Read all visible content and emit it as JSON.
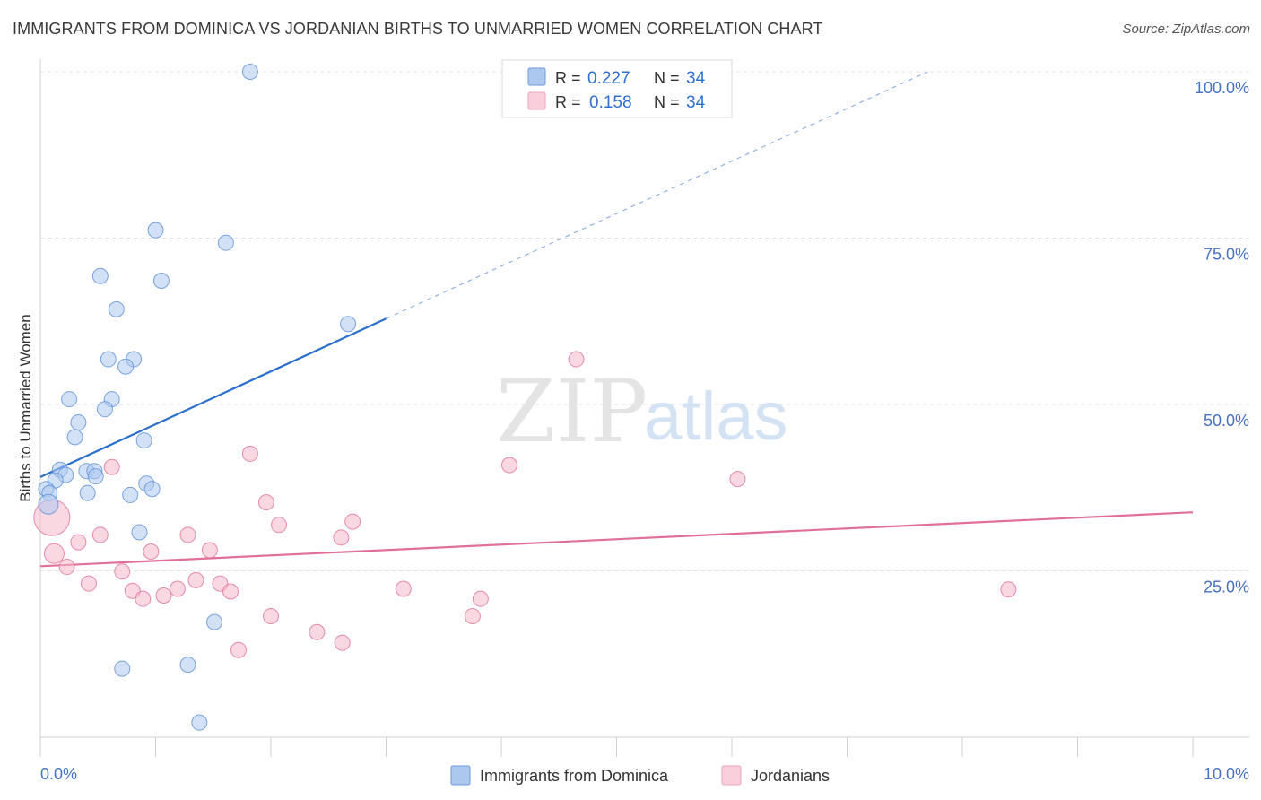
{
  "title": "IMMIGRANTS FROM DOMINICA VS JORDANIAN BIRTHS TO UNMARRIED WOMEN CORRELATION CHART",
  "source": "Source: ZipAtlas.com",
  "watermark": {
    "part1": "ZIP",
    "part2": "atlas"
  },
  "legend_top": {
    "rows": [
      {
        "r_label": "R =",
        "r_value": "0.227",
        "n_label": "N =",
        "n_value": "34",
        "color": "#adc8ef"
      },
      {
        "r_label": "R =",
        "r_value": "0.158",
        "n_label": "N =",
        "n_value": "34",
        "color": "#f5b8ca"
      }
    ]
  },
  "chart_data": {
    "type": "scatter",
    "title": "IMMIGRANTS FROM DOMINICA VS JORDANIAN BIRTHS TO UNMARRIED WOMEN CORRELATION CHART",
    "xlabel": "",
    "ylabel": "Births to Unmarried Women",
    "xlim": [
      0,
      10
    ],
    "ylim": [
      0,
      100
    ],
    "x_tick_labels": [
      "0.0%",
      "10.0%"
    ],
    "y_ticks": [
      25,
      50,
      75,
      100
    ],
    "y_tick_labels": [
      "25.0%",
      "50.0%",
      "75.0%",
      "100.0%"
    ],
    "grid": true,
    "legend_position": "bottom",
    "series": [
      {
        "name": "Immigrants from Dominica",
        "color": "#5b8fd8",
        "fill": "#adc8ef",
        "points": [
          [
            1.82,
            100.0
          ],
          [
            1.0,
            76.2
          ],
          [
            1.61,
            74.3
          ],
          [
            0.52,
            69.3
          ],
          [
            1.05,
            68.6
          ],
          [
            0.66,
            64.3
          ],
          [
            2.67,
            62.1
          ],
          [
            0.59,
            56.8
          ],
          [
            0.81,
            56.8
          ],
          [
            0.74,
            55.7
          ],
          [
            0.25,
            50.8
          ],
          [
            0.62,
            50.8
          ],
          [
            0.56,
            49.3
          ],
          [
            0.33,
            47.3
          ],
          [
            0.3,
            45.1
          ],
          [
            0.9,
            44.6
          ],
          [
            0.17,
            40.2
          ],
          [
            0.4,
            40.0
          ],
          [
            0.47,
            40.0
          ],
          [
            0.22,
            39.4
          ],
          [
            0.48,
            39.2
          ],
          [
            0.13,
            38.6
          ],
          [
            0.92,
            38.1
          ],
          [
            0.05,
            37.3
          ],
          [
            0.97,
            37.3
          ],
          [
            0.08,
            36.7
          ],
          [
            0.41,
            36.7
          ],
          [
            0.78,
            36.4
          ],
          [
            0.07,
            35.0
          ],
          [
            0.86,
            30.8
          ],
          [
            1.51,
            17.3
          ],
          [
            0.71,
            10.3
          ],
          [
            1.28,
            10.9
          ],
          [
            1.38,
            2.2
          ]
        ],
        "trend": {
          "x0": 0.0,
          "y0": 39.1,
          "x1": 3.0,
          "y1": 62.9,
          "ext_x1": 7.7,
          "ext_y1": 100.0
        }
      },
      {
        "name": "Jordanians",
        "color": "#e0709a",
        "fill": "#f5b8ca",
        "points": [
          [
            4.65,
            56.8
          ],
          [
            1.82,
            42.6
          ],
          [
            4.07,
            40.9
          ],
          [
            6.05,
            38.8
          ],
          [
            0.62,
            40.6
          ],
          [
            1.96,
            35.3
          ],
          [
            2.71,
            32.4
          ],
          [
            2.07,
            31.9
          ],
          [
            0.52,
            30.4
          ],
          [
            1.28,
            30.4
          ],
          [
            2.61,
            30.0
          ],
          [
            0.33,
            29.3
          ],
          [
            1.47,
            28.1
          ],
          [
            0.96,
            27.9
          ],
          [
            0.12,
            27.6
          ],
          [
            0.1,
            33.0
          ],
          [
            0.23,
            25.6
          ],
          [
            0.71,
            24.9
          ],
          [
            0.42,
            23.1
          ],
          [
            1.35,
            23.6
          ],
          [
            1.56,
            23.1
          ],
          [
            1.19,
            22.3
          ],
          [
            3.15,
            22.3
          ],
          [
            8.4,
            22.2
          ],
          [
            0.8,
            22.0
          ],
          [
            1.65,
            21.9
          ],
          [
            1.07,
            21.3
          ],
          [
            0.89,
            20.8
          ],
          [
            3.82,
            20.8
          ],
          [
            2.0,
            18.2
          ],
          [
            3.75,
            18.2
          ],
          [
            2.4,
            15.8
          ],
          [
            2.62,
            14.2
          ],
          [
            1.72,
            13.1
          ]
        ],
        "trend": {
          "x0": 0.0,
          "y0": 25.7,
          "x1": 10.0,
          "y1": 33.8
        }
      }
    ]
  }
}
